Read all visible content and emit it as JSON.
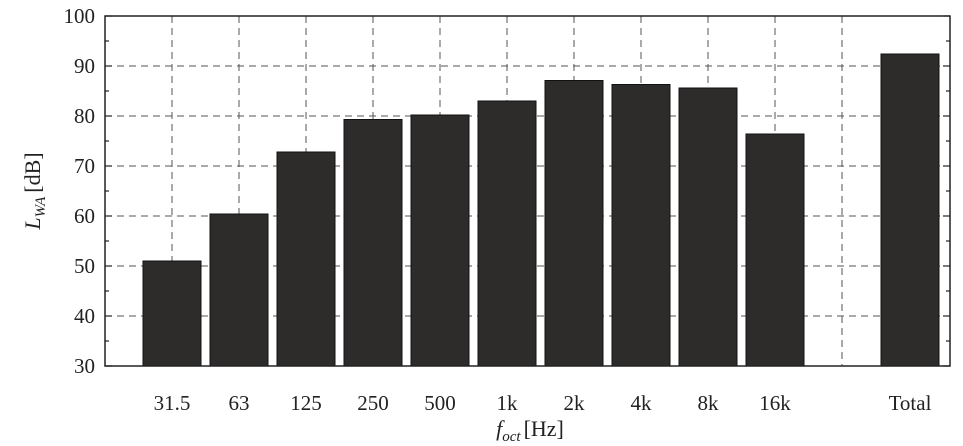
{
  "chart_data": {
    "type": "bar",
    "categories": [
      "31.5",
      "63",
      "125",
      "250",
      "500",
      "1k",
      "2k",
      "4k",
      "8k",
      "16k",
      "Total"
    ],
    "values": [
      51,
      60.4,
      72.8,
      79.3,
      80.2,
      83,
      87.1,
      86.3,
      85.6,
      76.4,
      92.4
    ],
    "title": "",
    "xlabel": {
      "main": "f",
      "sub": "oct",
      "unit": "[Hz]"
    },
    "ylabel": {
      "main": "L",
      "sub": "WA",
      "unit": "[dB]"
    },
    "ylim": [
      30,
      100
    ],
    "yticks": [
      "30",
      "40",
      "50",
      "60",
      "70",
      "80",
      "90",
      "100"
    ],
    "grid": true,
    "legend": "none",
    "bar_color": "#2e2b2b"
  }
}
